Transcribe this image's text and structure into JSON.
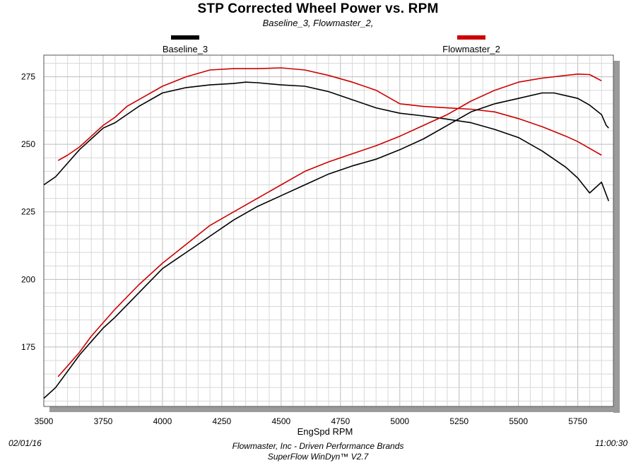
{
  "header": {
    "title": "STP Corrected Wheel Power vs. RPM",
    "subtitle": "Baseline_3, Flowmaster_2,"
  },
  "legend": [
    {
      "name": "Baseline_3",
      "color": "#000000"
    },
    {
      "name": "Flowmaster_2",
      "color": "#cc0000"
    }
  ],
  "footer": {
    "date": "02/01/16",
    "company": "Flowmaster, Inc - Driven Performance Brands",
    "software": "SuperFlow WinDyn™ V2.7",
    "time": "11:00:30"
  },
  "chart_data": {
    "type": "line",
    "title": "STP Corrected Wheel Power vs. RPM",
    "subtitle": "Baseline_3, Flowmaster_2,",
    "xlabel": "EngSpd  RPM",
    "ylabel": "",
    "xlim": [
      3500,
      5900
    ],
    "ylim": [
      153,
      283
    ],
    "xticks": [
      3500,
      3750,
      4000,
      4250,
      4500,
      4750,
      5000,
      5250,
      5500,
      5750
    ],
    "yticks": [
      175,
      200,
      225,
      250,
      275
    ],
    "grid": true,
    "legend_position": "top",
    "series": [
      {
        "name": "Baseline_3",
        "group": "torque",
        "color": "#000000",
        "x": [
          3500,
          3550,
          3600,
          3650,
          3700,
          3750,
          3800,
          3850,
          3900,
          4000,
          4100,
          4200,
          4300,
          4350,
          4400,
          4500,
          4600,
          4700,
          4800,
          4900,
          5000,
          5100,
          5200,
          5300,
          5400,
          5500,
          5600,
          5700,
          5750,
          5800,
          5850,
          5880
        ],
        "y": [
          235,
          238,
          243,
          248,
          252,
          256,
          258,
          261,
          264,
          269,
          271,
          272,
          272.5,
          273,
          272.8,
          272,
          271.5,
          269.5,
          266.5,
          263.5,
          261.5,
          260.5,
          259.3,
          258,
          255.5,
          252.5,
          247.5,
          241.5,
          237.5,
          232,
          236,
          229
        ]
      },
      {
        "name": "Flowmaster_2",
        "group": "torque",
        "color": "#cc0000",
        "x": [
          3560,
          3600,
          3650,
          3700,
          3750,
          3800,
          3850,
          3900,
          4000,
          4100,
          4200,
          4300,
          4400,
          4500,
          4600,
          4700,
          4800,
          4900,
          5000,
          5100,
          5200,
          5300,
          5400,
          5500,
          5600,
          5700,
          5750,
          5800,
          5850
        ],
        "y": [
          244,
          246,
          249,
          253,
          257,
          260,
          264,
          266.5,
          271.5,
          275,
          277.5,
          278,
          278,
          278.3,
          277.5,
          275.5,
          273,
          270,
          265,
          264,
          263.5,
          263,
          262,
          259.5,
          256.5,
          253,
          251,
          248.5,
          246
        ]
      },
      {
        "name": "Baseline_3",
        "group": "power",
        "color": "#000000",
        "x": [
          3500,
          3550,
          3600,
          3650,
          3700,
          3750,
          3800,
          3900,
          4000,
          4100,
          4200,
          4300,
          4400,
          4500,
          4600,
          4700,
          4800,
          4900,
          5000,
          5100,
          5200,
          5300,
          5400,
          5500,
          5600,
          5650,
          5700,
          5750,
          5800,
          5850,
          5870,
          5880
        ],
        "y": [
          156,
          160,
          166,
          172,
          177,
          182,
          186,
          195,
          204,
          210,
          216,
          222,
          227,
          231,
          235,
          239,
          242,
          244.5,
          248,
          252,
          257,
          262,
          265,
          267,
          269,
          269,
          268,
          267,
          264.5,
          261,
          257,
          256
        ]
      },
      {
        "name": "Flowmaster_2",
        "group": "power",
        "color": "#cc0000",
        "x": [
          3560,
          3600,
          3650,
          3700,
          3750,
          3800,
          3900,
          4000,
          4100,
          4200,
          4300,
          4400,
          4500,
          4600,
          4700,
          4800,
          4900,
          5000,
          5100,
          5200,
          5300,
          5400,
          5500,
          5600,
          5700,
          5750,
          5800,
          5850
        ],
        "y": [
          164,
          168,
          173,
          179,
          184,
          189,
          198,
          206,
          213,
          220,
          225,
          230,
          235,
          240,
          243.5,
          246.5,
          249.5,
          253,
          257,
          261,
          266,
          270,
          273,
          274.5,
          275.5,
          276,
          275.8,
          273.5
        ]
      }
    ]
  }
}
